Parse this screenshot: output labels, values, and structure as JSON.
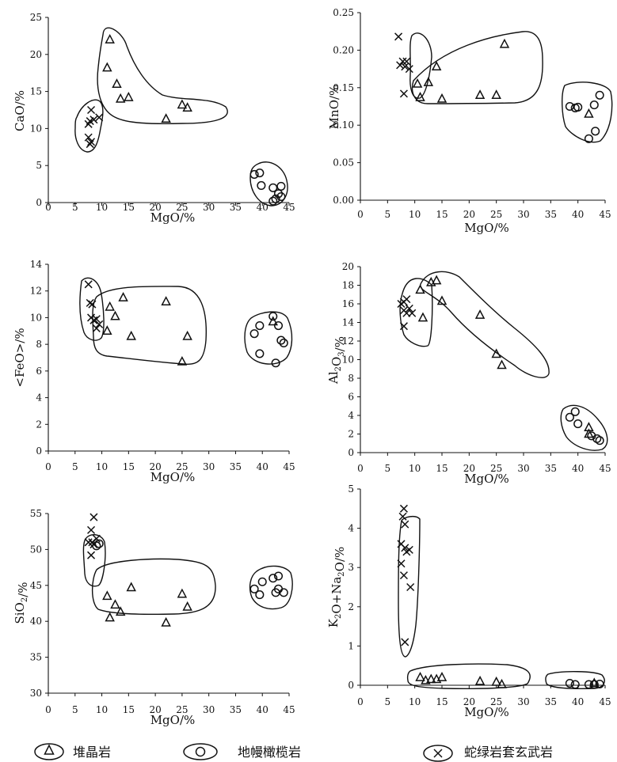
{
  "legend": [
    {
      "symbol": "triangle",
      "label": "堆晶岩"
    },
    {
      "symbol": "circle",
      "label": "地幔橄榄岩"
    },
    {
      "symbol": "cross",
      "label": "蛇绿岩套玄武岩"
    }
  ],
  "chart_data": [
    {
      "type": "scatter",
      "xlabel": "MgO/%",
      "ylabel": "CaO/%",
      "xlim": [
        0,
        45
      ],
      "ylim": [
        0,
        25
      ],
      "xticks": [
        "0",
        "5",
        "10",
        "15",
        "20",
        "25",
        "30",
        "35",
        "40",
        "45"
      ],
      "yticks": [
        "0",
        "5",
        "10",
        "15",
        "20",
        "25"
      ],
      "series": [
        {
          "symbol": "triangle",
          "points": [
            [
              11.5,
              22
            ],
            [
              11,
              18.2
            ],
            [
              12.8,
              16
            ],
            [
              13.5,
              14
            ],
            [
              15,
              14.2
            ],
            [
              22,
              11.3
            ],
            [
              25,
              13.2
            ],
            [
              26,
              12.8
            ]
          ]
        },
        {
          "symbol": "circle",
          "points": [
            [
              38.5,
              3.8
            ],
            [
              39.5,
              4
            ],
            [
              39.8,
              2.3
            ],
            [
              42,
              2
            ],
            [
              42.5,
              0.5
            ],
            [
              43,
              1.2
            ],
            [
              43.5,
              2.2
            ],
            [
              43.5,
              0.8
            ],
            [
              42,
              0.2
            ]
          ]
        },
        {
          "symbol": "cross",
          "points": [
            [
              7.5,
              10.6
            ],
            [
              8,
              12.5
            ],
            [
              7.8,
              11
            ],
            [
              8.5,
              11.2
            ],
            [
              9.5,
              11.5
            ],
            [
              7.5,
              8.8
            ],
            [
              8,
              8.2
            ],
            [
              7.8,
              7.9
            ]
          ]
        }
      ]
    },
    {
      "type": "scatter",
      "xlabel": "MgO/%",
      "ylabel": "MnO/%",
      "xlim": [
        0,
        45
      ],
      "ylim": [
        0,
        0.25
      ],
      "xticks": [
        "0",
        "5",
        "10",
        "15",
        "20",
        "25",
        "30",
        "35",
        "40",
        "45"
      ],
      "yticks": [
        "0.00",
        "0.05",
        "0.10",
        "0.15",
        "0.20",
        "0.25"
      ],
      "series": [
        {
          "symbol": "triangle",
          "points": [
            [
              10.5,
              0.155
            ],
            [
              11,
              0.137
            ],
            [
              12.5,
              0.157
            ],
            [
              14,
              0.178
            ],
            [
              15,
              0.135
            ],
            [
              22,
              0.14
            ],
            [
              25,
              0.14
            ],
            [
              26.5,
              0.208
            ],
            [
              42,
              0.115
            ]
          ]
        },
        {
          "symbol": "circle",
          "points": [
            [
              38.5,
              0.125
            ],
            [
              39.5,
              0.123
            ],
            [
              40,
              0.124
            ],
            [
              42,
              0.082
            ],
            [
              43,
              0.127
            ],
            [
              43.2,
              0.092
            ],
            [
              44,
              0.14
            ]
          ]
        },
        {
          "symbol": "cross",
          "points": [
            [
              7,
              0.218
            ],
            [
              7.3,
              0.18
            ],
            [
              7.8,
              0.185
            ],
            [
              8.2,
              0.178
            ],
            [
              8.5,
              0.185
            ],
            [
              9,
              0.175
            ],
            [
              8,
              0.142
            ]
          ]
        }
      ]
    },
    {
      "type": "scatter",
      "xlabel": "MgO/%",
      "ylabel": "<FeO>/%",
      "xlim": [
        0,
        45
      ],
      "ylim": [
        0,
        14
      ],
      "xticks": [
        "0",
        "5",
        "10",
        "15",
        "20",
        "25",
        "30",
        "35",
        "40",
        "45"
      ],
      "yticks": [
        "0",
        "2",
        "4",
        "6",
        "8",
        "10",
        "12",
        "14"
      ],
      "series": [
        {
          "symbol": "triangle",
          "points": [
            [
              11,
              9
            ],
            [
              11.5,
              10.8
            ],
            [
              12.5,
              10.1
            ],
            [
              14,
              11.5
            ],
            [
              15.5,
              8.6
            ],
            [
              22,
              11.2
            ],
            [
              25,
              6.7
            ],
            [
              26,
              8.6
            ],
            [
              42,
              9.7
            ]
          ]
        },
        {
          "symbol": "circle",
          "points": [
            [
              38.5,
              8.8
            ],
            [
              39.5,
              9.4
            ],
            [
              39.5,
              7.3
            ],
            [
              42,
              10.1
            ],
            [
              42.5,
              6.6
            ],
            [
              43,
              9.4
            ],
            [
              43.5,
              8.3
            ],
            [
              44,
              8.1
            ]
          ]
        },
        {
          "symbol": "cross",
          "points": [
            [
              7.5,
              12.5
            ],
            [
              7.8,
              11.1
            ],
            [
              8.2,
              11
            ],
            [
              8,
              10
            ],
            [
              8.5,
              9.8
            ],
            [
              9,
              9.9
            ],
            [
              9,
              9.2
            ],
            [
              9.5,
              9.5
            ]
          ]
        }
      ]
    },
    {
      "type": "scatter",
      "xlabel": "MgO/%",
      "ylabel": "Al2O3/%",
      "xlim": [
        0,
        45
      ],
      "ylim": [
        0,
        20
      ],
      "xticks": [
        "0",
        "5",
        "10",
        "15",
        "20",
        "25",
        "30",
        "35",
        "40",
        "45"
      ],
      "yticks": [
        "0",
        "2",
        "4",
        "6",
        "8",
        "10",
        "12",
        "14",
        "16",
        "18",
        "20"
      ],
      "series": [
        {
          "symbol": "triangle",
          "points": [
            [
              11,
              17.5
            ],
            [
              11.5,
              14.5
            ],
            [
              13,
              18.3
            ],
            [
              14,
              18.5
            ],
            [
              15,
              16.3
            ],
            [
              22,
              14.8
            ],
            [
              25,
              10.6
            ],
            [
              26,
              9.4
            ],
            [
              42,
              2.7
            ],
            [
              42,
              2
            ]
          ]
        },
        {
          "symbol": "circle",
          "points": [
            [
              38.5,
              3.8
            ],
            [
              39.5,
              4.4
            ],
            [
              40,
              3.1
            ],
            [
              42.5,
              1.8
            ],
            [
              43.5,
              1.5
            ],
            [
              44,
              1.3
            ]
          ]
        },
        {
          "symbol": "cross",
          "points": [
            [
              7.5,
              16
            ],
            [
              8,
              16.2
            ],
            [
              8.5,
              16.5
            ],
            [
              8,
              15.3
            ],
            [
              9,
              15.5
            ],
            [
              8.5,
              15
            ],
            [
              9.5,
              15
            ],
            [
              8,
              13.6
            ]
          ]
        }
      ]
    },
    {
      "type": "scatter",
      "xlabel": "MgO/%",
      "ylabel": "SiO2/%",
      "xlim": [
        0,
        45
      ],
      "ylim": [
        30,
        55
      ],
      "xticks": [
        "0",
        "5",
        "10",
        "15",
        "20",
        "25",
        "30",
        "35",
        "40",
        "45"
      ],
      "yticks": [
        "30",
        "35",
        "40",
        "45",
        "50",
        "55"
      ],
      "series": [
        {
          "symbol": "triangle",
          "points": [
            [
              11,
              43.5
            ],
            [
              11.5,
              40.5
            ],
            [
              12.5,
              42.3
            ],
            [
              13.5,
              41.3
            ],
            [
              15.5,
              44.7
            ],
            [
              22,
              39.8
            ],
            [
              25,
              43.8
            ],
            [
              26,
              42
            ]
          ]
        },
        {
          "symbol": "circle",
          "points": [
            [
              9,
              50.5
            ],
            [
              9.5,
              50.8
            ],
            [
              38.5,
              44.5
            ],
            [
              39.5,
              43.7
            ],
            [
              40,
              45.5
            ],
            [
              42,
              46
            ],
            [
              42.5,
              44
            ],
            [
              43,
              46.3
            ],
            [
              43,
              44.5
            ],
            [
              44,
              44
            ]
          ]
        },
        {
          "symbol": "cross",
          "points": [
            [
              7.5,
              51
            ],
            [
              8,
              52.7
            ],
            [
              8.5,
              50.7
            ],
            [
              8,
              49.2
            ],
            [
              8.5,
              54.5
            ],
            [
              8.2,
              51
            ],
            [
              9,
              51.5
            ]
          ]
        }
      ]
    },
    {
      "type": "scatter",
      "xlabel": "MgO/%",
      "ylabel": "K2O+Na2O/%",
      "xlim": [
        0,
        45
      ],
      "ylim": [
        0,
        5
      ],
      "xticks": [
        "0",
        "5",
        "10",
        "15",
        "20",
        "25",
        "30",
        "35",
        "40",
        "45"
      ],
      "yticks": [
        "0",
        "1",
        "2",
        "3",
        "4",
        "5"
      ],
      "series": [
        {
          "symbol": "triangle",
          "points": [
            [
              11,
              0.2
            ],
            [
              12,
              0.12
            ],
            [
              13,
              0.15
            ],
            [
              14,
              0.15
            ],
            [
              15,
              0.2
            ],
            [
              22,
              0.1
            ],
            [
              25,
              0.08
            ],
            [
              26,
              0.02
            ],
            [
              43,
              0.05
            ]
          ]
        },
        {
          "symbol": "circle",
          "points": [
            [
              38.5,
              0.05
            ],
            [
              39.5,
              0.02
            ],
            [
              42,
              0.02
            ],
            [
              43,
              0.02
            ],
            [
              44,
              0.03
            ]
          ]
        },
        {
          "symbol": "cross",
          "points": [
            [
              7.5,
              3.6
            ],
            [
              7.8,
              4.3
            ],
            [
              8,
              4.5
            ],
            [
              8.2,
              4.1
            ],
            [
              7.5,
              3.1
            ],
            [
              8,
              2.8
            ],
            [
              8.5,
              3.4
            ],
            [
              8.2,
              3.5
            ],
            [
              9,
              3.45
            ],
            [
              9.2,
              2.5
            ],
            [
              8.2,
              1.1
            ]
          ]
        }
      ]
    }
  ]
}
